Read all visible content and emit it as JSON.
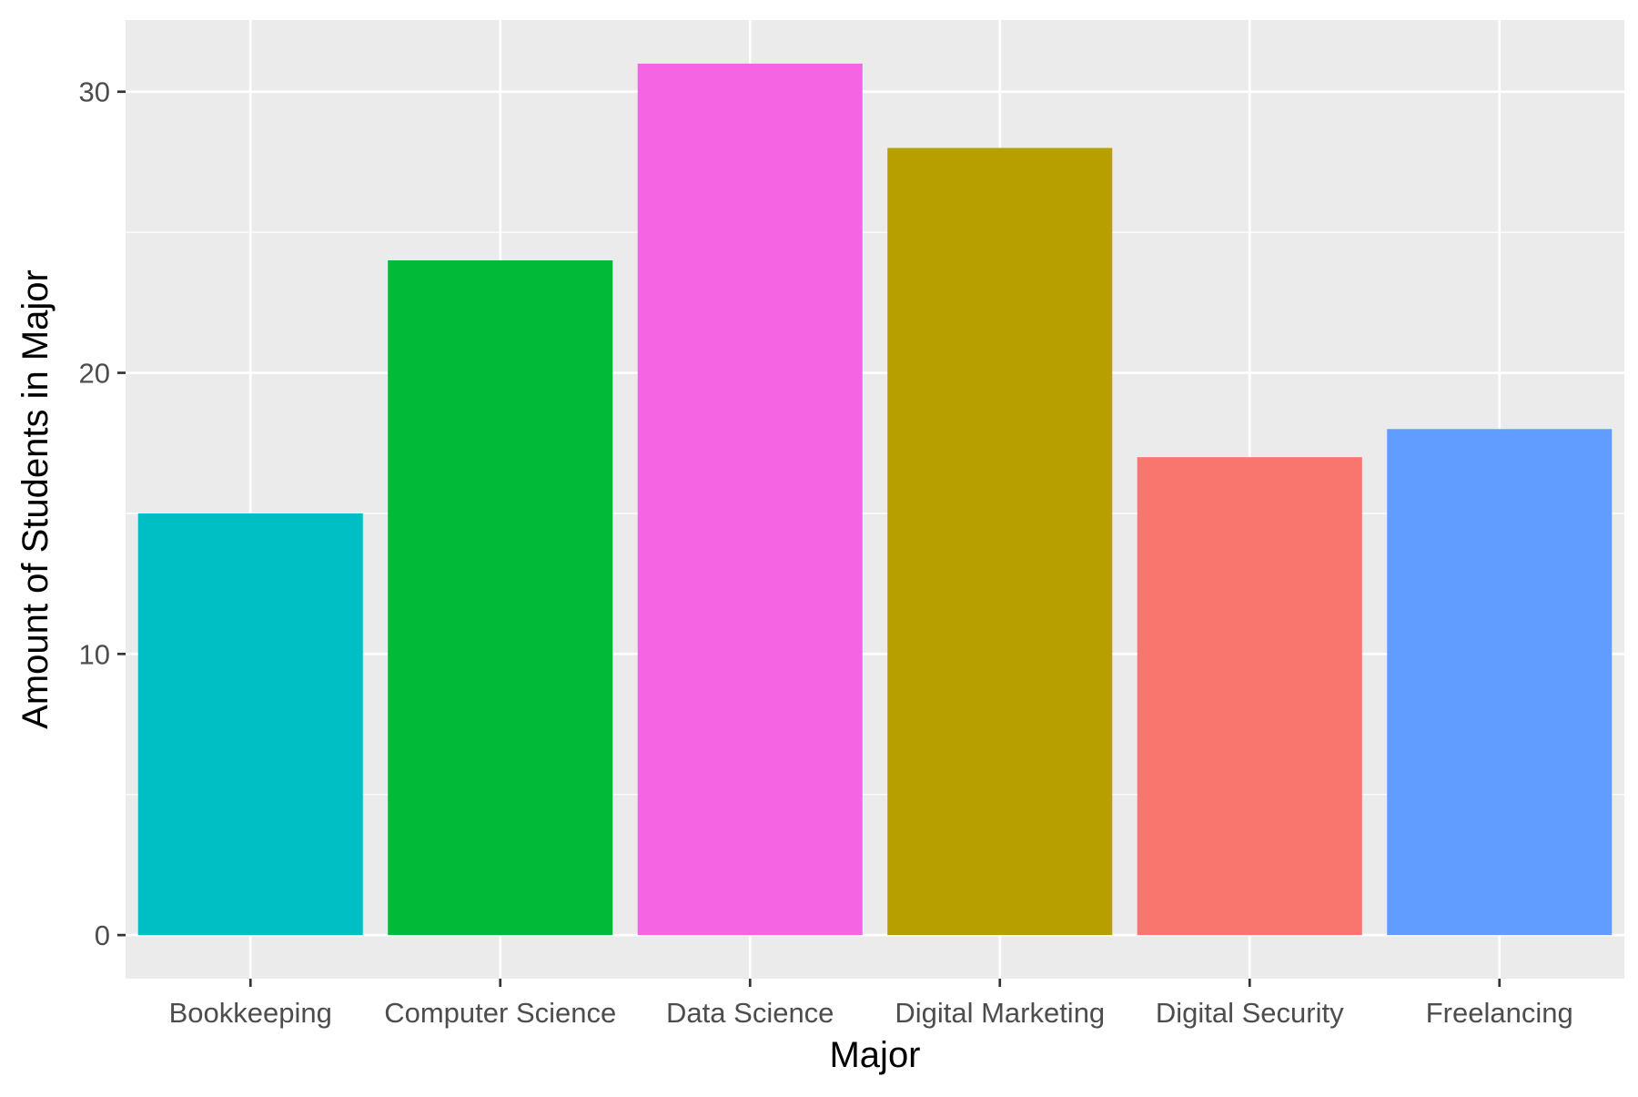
{
  "chart_data": {
    "type": "bar",
    "categories": [
      "Bookkeeping",
      "Computer Science",
      "Data Science",
      "Digital Marketing",
      "Digital Security",
      "Freelancing"
    ],
    "values": [
      15,
      24,
      31,
      28,
      17,
      18
    ],
    "colors": [
      "#00BFC4",
      "#00BA38",
      "#F564E3",
      "#B79F00",
      "#F8766D",
      "#619CFF"
    ],
    "xlabel": "Major",
    "ylabel": "Amount of Students in Major",
    "ylim": [
      -1.55,
      32.55
    ],
    "yticks": [
      0,
      10,
      20,
      30
    ],
    "grid": true,
    "legend": "none",
    "panel_background": "#EBEBEB",
    "grid_color": "#FFFFFF"
  }
}
